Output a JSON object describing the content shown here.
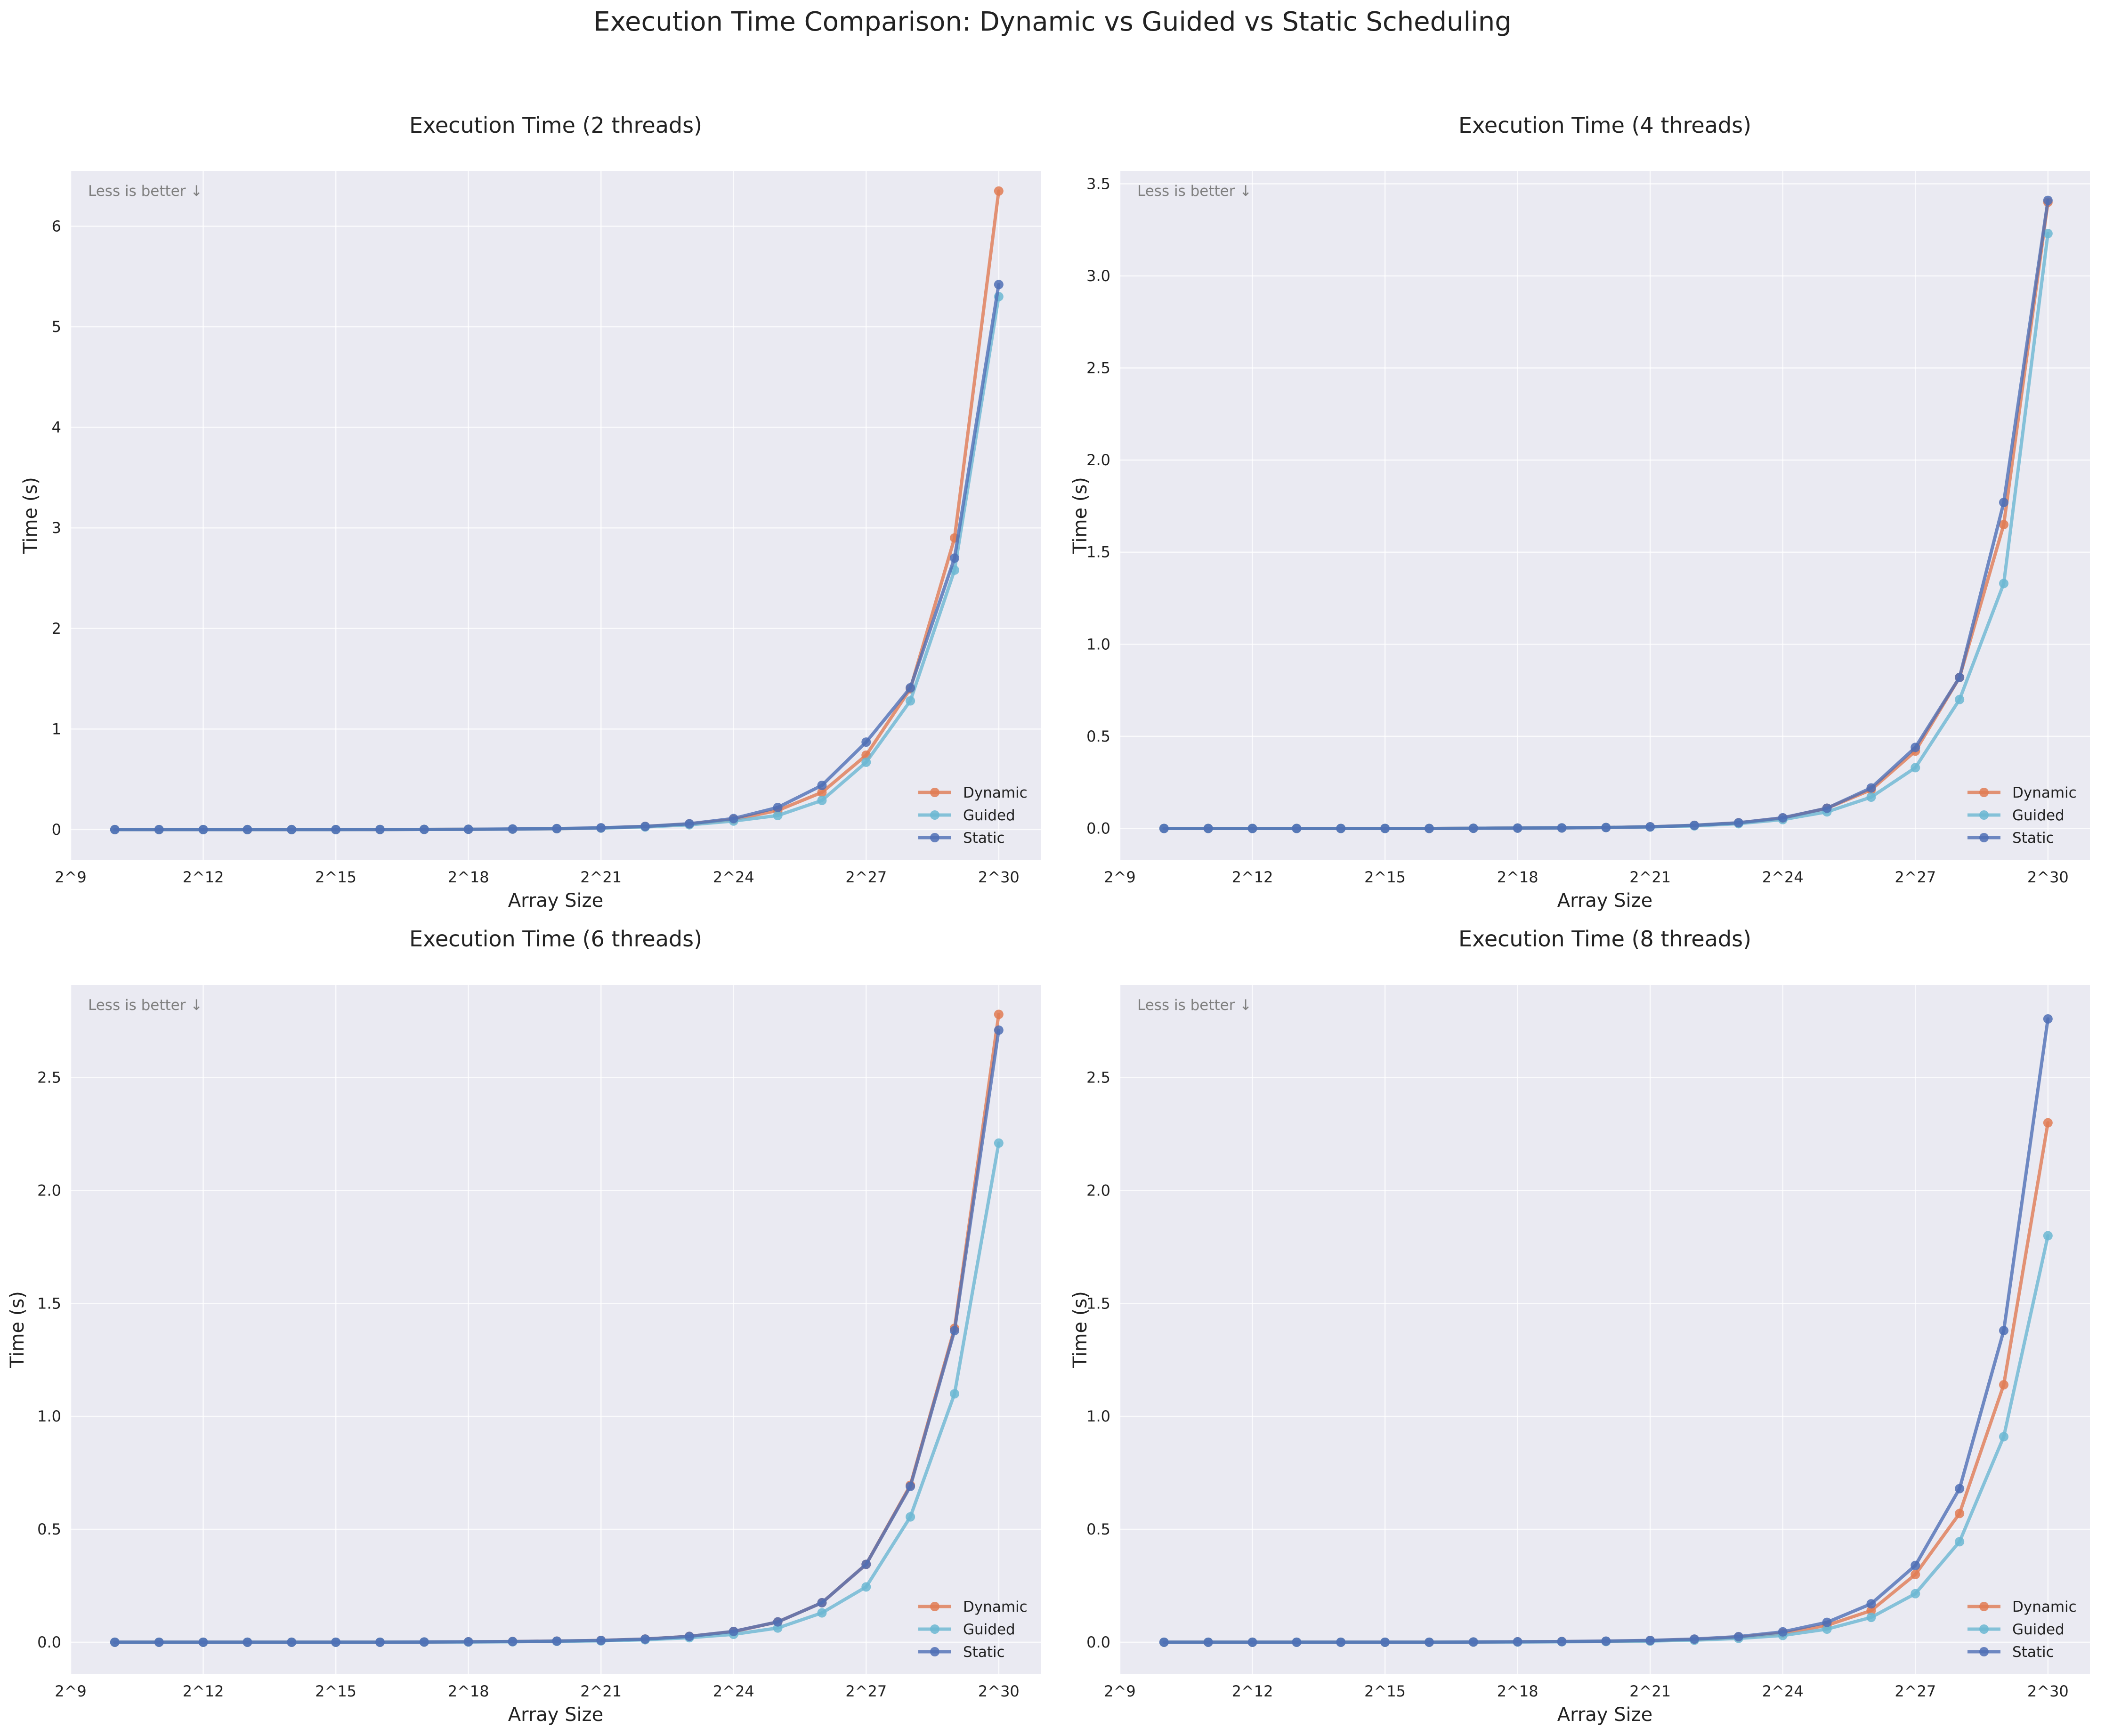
{
  "figure": {
    "title": "Execution Time Comparison: Dynamic vs Guided vs Static Scheduling",
    "colors": {
      "dynamic": "#E07B54",
      "guided": "#6BB7D2",
      "static": "#4F6FB5",
      "plot_background": "#EAEAF2",
      "annotation": "#808080"
    }
  },
  "chart_data": [
    {
      "type": "line",
      "title": "Execution Time (2 threads)",
      "xlabel": "Array Size",
      "ylabel": "Time (s)",
      "annotation": "Less is better ↓",
      "x": [
        10,
        11,
        12,
        13,
        14,
        15,
        16,
        17,
        18,
        19,
        20,
        21,
        22,
        23,
        24,
        25,
        26,
        27,
        28,
        29,
        30
      ],
      "x_ticks": [
        9,
        12,
        15,
        18,
        21,
        24,
        27,
        30
      ],
      "x_tick_labels": [
        "2^9",
        "2^12",
        "2^15",
        "2^18",
        "2^21",
        "2^24",
        "2^27",
        "2^30"
      ],
      "xlim": [
        9,
        30.95
      ],
      "ylim": [
        -0.3,
        6.55
      ],
      "y_ticks": [
        0,
        1,
        2,
        3,
        4,
        5,
        6
      ],
      "y_tick_labels": [
        "0",
        "1",
        "2",
        "3",
        "4",
        "5",
        "6"
      ],
      "grid": true,
      "legend_position": "bottom-right",
      "series": [
        {
          "name": "Dynamic",
          "color_key": "dynamic",
          "values": [
            0.0,
            0.0,
            0.0,
            0.0,
            0.0,
            0.0,
            0.001,
            0.002,
            0.003,
            0.005,
            0.009,
            0.016,
            0.03,
            0.055,
            0.1,
            0.19,
            0.37,
            0.74,
            1.4,
            2.9,
            6.35
          ]
        },
        {
          "name": "Guided",
          "color_key": "guided",
          "values": [
            0.0,
            0.0,
            0.0,
            0.0,
            0.0,
            0.0,
            0.001,
            0.002,
            0.003,
            0.005,
            0.009,
            0.015,
            0.026,
            0.048,
            0.085,
            0.14,
            0.29,
            0.67,
            1.28,
            2.58,
            5.3
          ]
        },
        {
          "name": "Static",
          "color_key": "static",
          "values": [
            0.0,
            0.0,
            0.0,
            0.0,
            0.0,
            0.0,
            0.001,
            0.002,
            0.003,
            0.006,
            0.01,
            0.018,
            0.032,
            0.058,
            0.11,
            0.22,
            0.44,
            0.87,
            1.41,
            2.7,
            5.42
          ]
        }
      ]
    },
    {
      "type": "line",
      "title": "Execution Time (4 threads)",
      "xlabel": "Array Size",
      "ylabel": "Time (s)",
      "annotation": "Less is better ↓",
      "x": [
        10,
        11,
        12,
        13,
        14,
        15,
        16,
        17,
        18,
        19,
        20,
        21,
        22,
        23,
        24,
        25,
        26,
        27,
        28,
        29,
        30
      ],
      "x_ticks": [
        9,
        12,
        15,
        18,
        21,
        24,
        27,
        30
      ],
      "x_tick_labels": [
        "2^9",
        "2^12",
        "2^15",
        "2^18",
        "2^21",
        "2^24",
        "2^27",
        "2^30"
      ],
      "xlim": [
        9,
        30.95
      ],
      "ylim": [
        -0.17,
        3.57
      ],
      "y_ticks": [
        0,
        0.5,
        1,
        1.5,
        2,
        2.5,
        3,
        3.5
      ],
      "y_tick_labels": [
        "0.0",
        "0.5",
        "1.0",
        "1.5",
        "2.0",
        "2.5",
        "3.0",
        "3.5"
      ],
      "grid": true,
      "legend_position": "bottom-right",
      "series": [
        {
          "name": "Dynamic",
          "color_key": "dynamic",
          "values": [
            0.0,
            0.0,
            0.0,
            0.0,
            0.0,
            0.0,
            0.0,
            0.001,
            0.002,
            0.003,
            0.005,
            0.009,
            0.016,
            0.03,
            0.055,
            0.11,
            0.21,
            0.42,
            0.82,
            1.65,
            3.4
          ]
        },
        {
          "name": "Guided",
          "color_key": "guided",
          "values": [
            0.0,
            0.0,
            0.0,
            0.0,
            0.0,
            0.0,
            0.0,
            0.001,
            0.002,
            0.003,
            0.005,
            0.008,
            0.014,
            0.026,
            0.048,
            0.09,
            0.17,
            0.33,
            0.7,
            1.33,
            3.23
          ]
        },
        {
          "name": "Static",
          "color_key": "static",
          "values": [
            0.0,
            0.0,
            0.0,
            0.0,
            0.0,
            0.0,
            0.0,
            0.001,
            0.002,
            0.003,
            0.005,
            0.009,
            0.017,
            0.031,
            0.058,
            0.11,
            0.22,
            0.44,
            0.82,
            1.77,
            3.41
          ]
        }
      ]
    },
    {
      "type": "line",
      "title": "Execution Time (6 threads)",
      "xlabel": "Array Size",
      "ylabel": "Time (s)",
      "annotation": "Less is better ↓",
      "x": [
        10,
        11,
        12,
        13,
        14,
        15,
        16,
        17,
        18,
        19,
        20,
        21,
        22,
        23,
        24,
        25,
        26,
        27,
        28,
        29,
        30
      ],
      "x_ticks": [
        9,
        12,
        15,
        18,
        21,
        24,
        27,
        30
      ],
      "x_tick_labels": [
        "2^9",
        "2^12",
        "2^15",
        "2^18",
        "2^21",
        "2^24",
        "2^27",
        "2^30"
      ],
      "xlim": [
        9,
        30.95
      ],
      "ylim": [
        -0.14,
        2.91
      ],
      "y_ticks": [
        0,
        0.5,
        1,
        1.5,
        2,
        2.5
      ],
      "y_tick_labels": [
        "0.0",
        "0.5",
        "1.0",
        "1.5",
        "2.0",
        "2.5"
      ],
      "grid": true,
      "legend_position": "bottom-right",
      "series": [
        {
          "name": "Dynamic",
          "color_key": "dynamic",
          "values": [
            0.0,
            0.0,
            0.0,
            0.0,
            0.0,
            0.0,
            0.0,
            0.001,
            0.002,
            0.003,
            0.005,
            0.008,
            0.014,
            0.026,
            0.047,
            0.09,
            0.175,
            0.345,
            0.695,
            1.39,
            2.78
          ]
        },
        {
          "name": "Guided",
          "color_key": "guided",
          "values": [
            0.0,
            0.0,
            0.0,
            0.0,
            0.0,
            0.0,
            0.0,
            0.001,
            0.001,
            0.002,
            0.004,
            0.006,
            0.011,
            0.02,
            0.035,
            0.063,
            0.13,
            0.245,
            0.555,
            1.1,
            2.21
          ]
        },
        {
          "name": "Static",
          "color_key": "static",
          "values": [
            0.0,
            0.0,
            0.0,
            0.0,
            0.0,
            0.0,
            0.0,
            0.001,
            0.002,
            0.003,
            0.005,
            0.008,
            0.014,
            0.026,
            0.048,
            0.09,
            0.175,
            0.345,
            0.69,
            1.38,
            2.71
          ]
        }
      ]
    },
    {
      "type": "line",
      "title": "Execution Time (8 threads)",
      "xlabel": "Array Size",
      "ylabel": "Time (s)",
      "annotation": "Less is better ↓",
      "x": [
        10,
        11,
        12,
        13,
        14,
        15,
        16,
        17,
        18,
        19,
        20,
        21,
        22,
        23,
        24,
        25,
        26,
        27,
        28,
        29,
        30
      ],
      "x_ticks": [
        9,
        12,
        15,
        18,
        21,
        24,
        27,
        30
      ],
      "x_tick_labels": [
        "2^9",
        "2^12",
        "2^15",
        "2^18",
        "2^21",
        "2^24",
        "2^27",
        "2^30"
      ],
      "xlim": [
        9,
        30.95
      ],
      "ylim": [
        -0.14,
        2.91
      ],
      "y_ticks": [
        0,
        0.5,
        1,
        1.5,
        2,
        2.5
      ],
      "y_tick_labels": [
        "0.0",
        "0.5",
        "1.0",
        "1.5",
        "2.0",
        "2.5"
      ],
      "grid": true,
      "legend_position": "bottom-right",
      "series": [
        {
          "name": "Dynamic",
          "color_key": "dynamic",
          "values": [
            0.0,
            0.0,
            0.0,
            0.0,
            0.0,
            0.0,
            0.0,
            0.001,
            0.002,
            0.003,
            0.004,
            0.007,
            0.012,
            0.022,
            0.04,
            0.075,
            0.14,
            0.3,
            0.57,
            1.14,
            2.3
          ]
        },
        {
          "name": "Guided",
          "color_key": "guided",
          "values": [
            0.0,
            0.0,
            0.0,
            0.0,
            0.0,
            0.0,
            0.0,
            0.001,
            0.001,
            0.002,
            0.003,
            0.005,
            0.009,
            0.017,
            0.03,
            0.058,
            0.11,
            0.215,
            0.445,
            0.91,
            1.8
          ]
        },
        {
          "name": "Static",
          "color_key": "static",
          "values": [
            0.0,
            0.0,
            0.0,
            0.0,
            0.0,
            0.0,
            0.0,
            0.001,
            0.002,
            0.003,
            0.005,
            0.008,
            0.014,
            0.025,
            0.046,
            0.088,
            0.17,
            0.34,
            0.68,
            1.38,
            2.76
          ]
        }
      ]
    }
  ]
}
